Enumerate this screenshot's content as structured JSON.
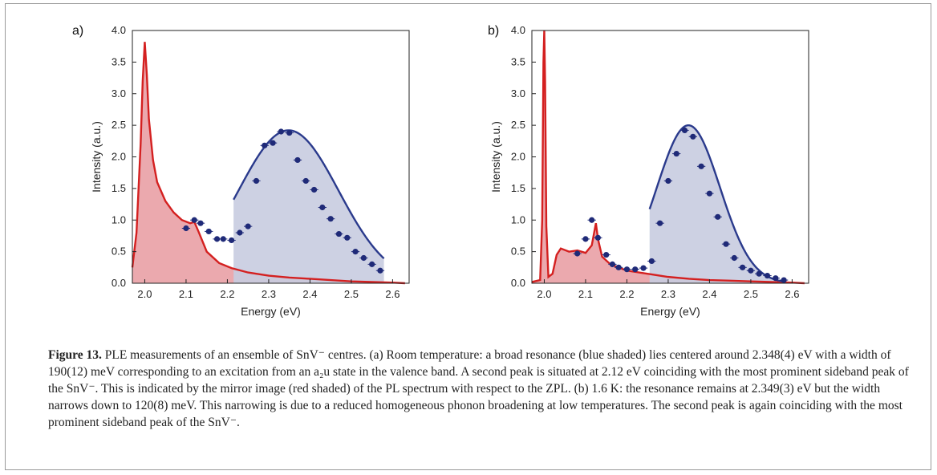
{
  "chart_data": [
    {
      "type": "line",
      "panel_label": "a)",
      "xlabel": "Energy (eV)",
      "ylabel": "Intensity (a.u.)",
      "xlim": [
        1.97,
        2.64
      ],
      "ylim": [
        0.0,
        4.0
      ],
      "xticks": [
        "2.0",
        "2.1",
        "2.2",
        "2.3",
        "2.4",
        "2.5",
        "2.6"
      ],
      "yticks": [
        "0.0",
        "0.5",
        "1.0",
        "1.5",
        "2.0",
        "2.5",
        "3.0",
        "3.5",
        "4.0"
      ],
      "colors": {
        "pl": "#d42020",
        "pl_fill": "#e89aa0",
        "fit": "#2a3a8c",
        "fit_fill": "#c8cce0",
        "points": "#1f2a78"
      },
      "pl_spectrum": {
        "x": [
          1.97,
          1.98,
          1.99,
          1.995,
          2.0,
          2.005,
          2.01,
          2.02,
          2.03,
          2.05,
          2.07,
          2.09,
          2.11,
          2.12,
          2.13,
          2.15,
          2.18,
          2.21,
          2.25,
          2.3,
          2.35,
          2.4,
          2.45,
          2.5,
          2.55,
          2.6,
          2.63
        ],
        "y": [
          0.25,
          0.8,
          2.2,
          3.2,
          3.82,
          3.3,
          2.6,
          1.95,
          1.6,
          1.3,
          1.12,
          1.0,
          0.95,
          0.97,
          0.82,
          0.5,
          0.32,
          0.24,
          0.17,
          0.12,
          0.09,
          0.07,
          0.05,
          0.03,
          0.02,
          0.01,
          0.0
        ]
      },
      "fit_curve": {
        "center": 2.348,
        "width_eV": 0.19,
        "amplitude": 2.42,
        "range": [
          2.215,
          2.58
        ]
      },
      "ple_points": {
        "x": [
          2.1,
          2.12,
          2.135,
          2.155,
          2.175,
          2.19,
          2.21,
          2.23,
          2.25,
          2.27,
          2.29,
          2.31,
          2.33,
          2.35,
          2.37,
          2.39,
          2.41,
          2.43,
          2.45,
          2.47,
          2.49,
          2.51,
          2.53,
          2.55,
          2.57
        ],
        "y": [
          0.87,
          1.0,
          0.95,
          0.82,
          0.7,
          0.7,
          0.68,
          0.8,
          0.9,
          1.62,
          2.18,
          2.22,
          2.4,
          2.38,
          1.95,
          1.62,
          1.48,
          1.2,
          1.02,
          0.78,
          0.72,
          0.5,
          0.4,
          0.3,
          0.2
        ],
        "xerr": 0.01
      }
    },
    {
      "type": "line",
      "panel_label": "b)",
      "xlabel": "Energy (eV)",
      "ylabel": "Intensity (a.u.)",
      "xlim": [
        1.97,
        2.64
      ],
      "ylim": [
        0.0,
        4.0
      ],
      "xticks": [
        "2.0",
        "2.1",
        "2.2",
        "2.3",
        "2.4",
        "2.5",
        "2.6"
      ],
      "yticks": [
        "0.0",
        "0.5",
        "1.0",
        "1.5",
        "2.0",
        "2.5",
        "3.0",
        "3.5",
        "4.0"
      ],
      "colors": {
        "pl": "#d42020",
        "pl_fill": "#e89aa0",
        "fit": "#2a3a8c",
        "fit_fill": "#c8cce0",
        "points": "#1f2a78"
      },
      "pl_spectrum": {
        "x": [
          1.97,
          1.99,
          1.995,
          1.998,
          2.0,
          2.002,
          2.005,
          2.01,
          2.02,
          2.03,
          2.04,
          2.06,
          2.08,
          2.1,
          2.115,
          2.125,
          2.13,
          2.14,
          2.16,
          2.2,
          2.25,
          2.3,
          2.35,
          2.4,
          2.45,
          2.5,
          2.55,
          2.6,
          2.63
        ],
        "y": [
          0.02,
          0.05,
          1.0,
          3.5,
          4.0,
          3.2,
          0.9,
          0.1,
          0.15,
          0.45,
          0.55,
          0.5,
          0.52,
          0.48,
          0.6,
          0.95,
          0.7,
          0.42,
          0.3,
          0.2,
          0.15,
          0.1,
          0.07,
          0.05,
          0.04,
          0.03,
          0.02,
          0.01,
          0.0
        ]
      },
      "fit_curve": {
        "center": 2.349,
        "width_eV": 0.12,
        "amplitude": 2.5,
        "range": [
          2.255,
          2.58
        ]
      },
      "ple_points": {
        "x": [
          2.08,
          2.1,
          2.115,
          2.13,
          2.15,
          2.165,
          2.18,
          2.2,
          2.22,
          2.24,
          2.26,
          2.28,
          2.3,
          2.32,
          2.34,
          2.36,
          2.38,
          2.4,
          2.42,
          2.44,
          2.46,
          2.48,
          2.5,
          2.52,
          2.54,
          2.56,
          2.58
        ],
        "y": [
          0.47,
          0.7,
          1.0,
          0.72,
          0.45,
          0.3,
          0.25,
          0.22,
          0.22,
          0.24,
          0.35,
          0.95,
          1.62,
          2.05,
          2.42,
          2.32,
          1.85,
          1.42,
          1.05,
          0.62,
          0.4,
          0.25,
          0.2,
          0.15,
          0.12,
          0.08,
          0.05
        ],
        "xerr": 0.01
      }
    }
  ],
  "caption": {
    "label": "Figure 13.",
    "text": " PLE measurements of an ensemble of SnV⁻ centres. (a) Room temperature: a broad resonance (blue shaded) lies centered around 2.348(4) eV with a width of 190(12) meV corresponding to an excitation from an a₂u state in the valence band. A second peak is situated at 2.12 eV coinciding with the most prominent sideband peak of the SnV⁻. This is indicated by the mirror image (red shaded) of the PL spectrum with respect to the ZPL. (b) 1.6 K: the resonance remains at 2.349(3) eV but the width narrows down to 120(8) meV. This narrowing is due to a reduced homogeneous phonon broadening at low temperatures. The second peak is again coinciding with the most prominent sideband peak of the SnV⁻."
  }
}
